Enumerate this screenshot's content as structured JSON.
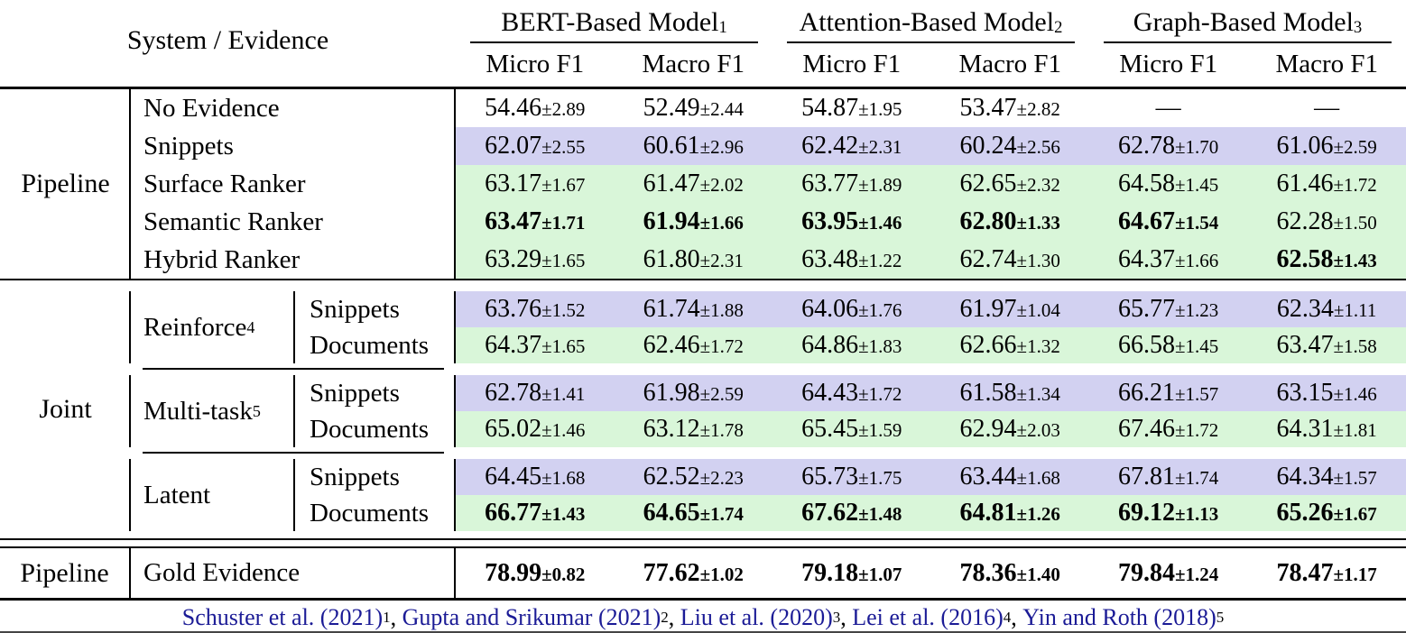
{
  "header": {
    "system_evidence": "System / Evidence",
    "model_groups": [
      {
        "label": "BERT-Based Model",
        "sup": "1"
      },
      {
        "label": "Attention-Based Model",
        "sup": "2"
      },
      {
        "label": "Graph-Based Model",
        "sup": "3"
      }
    ],
    "subcolumns": [
      "Micro F1",
      "Macro F1"
    ]
  },
  "colors": {
    "snippets_row_bg": "#d2d1f1",
    "documents_row_bg": "#d9f6d9",
    "citation_link": "#1b1b96"
  },
  "pipeline_block": {
    "label": "Pipeline",
    "rows": [
      {
        "evidence": "No Evidence",
        "bg": "none",
        "cells": [
          {
            "v": "54.46",
            "e": "±2.89",
            "bold": false
          },
          {
            "v": "52.49",
            "e": "±2.44",
            "bold": false
          },
          {
            "v": "54.87",
            "e": "±1.95",
            "bold": false
          },
          {
            "v": "53.47",
            "e": "±2.82",
            "bold": false
          },
          {
            "v": "—",
            "e": "",
            "bold": false
          },
          {
            "v": "—",
            "e": "",
            "bold": false
          }
        ]
      },
      {
        "evidence": "Snippets",
        "bg": "purple",
        "cells": [
          {
            "v": "62.07",
            "e": "±2.55",
            "bold": false
          },
          {
            "v": "60.61",
            "e": "±2.96",
            "bold": false
          },
          {
            "v": "62.42",
            "e": "±2.31",
            "bold": false
          },
          {
            "v": "60.24",
            "e": "±2.56",
            "bold": false
          },
          {
            "v": "62.78",
            "e": "±1.70",
            "bold": false
          },
          {
            "v": "61.06",
            "e": "±2.59",
            "bold": false
          }
        ]
      },
      {
        "evidence": "Surface Ranker",
        "bg": "green",
        "cells": [
          {
            "v": "63.17",
            "e": "±1.67",
            "bold": false
          },
          {
            "v": "61.47",
            "e": "±2.02",
            "bold": false
          },
          {
            "v": "63.77",
            "e": "±1.89",
            "bold": false
          },
          {
            "v": "62.65",
            "e": "±2.32",
            "bold": false
          },
          {
            "v": "64.58",
            "e": "±1.45",
            "bold": false
          },
          {
            "v": "61.46",
            "e": "±1.72",
            "bold": false
          }
        ]
      },
      {
        "evidence": "Semantic Ranker",
        "bg": "green",
        "cells": [
          {
            "v": "63.47",
            "e": "±1.71",
            "bold": true
          },
          {
            "v": "61.94",
            "e": "±1.66",
            "bold": true
          },
          {
            "v": "63.95",
            "e": "±1.46",
            "bold": true
          },
          {
            "v": "62.80",
            "e": "±1.33",
            "bold": true
          },
          {
            "v": "64.67",
            "e": "±1.54",
            "bold": true
          },
          {
            "v": "62.28",
            "e": "±1.50",
            "bold": false
          }
        ]
      },
      {
        "evidence": "Hybrid Ranker",
        "bg": "green",
        "cells": [
          {
            "v": "63.29",
            "e": "±1.65",
            "bold": false
          },
          {
            "v": "61.80",
            "e": "±2.31",
            "bold": false
          },
          {
            "v": "63.48",
            "e": "±1.22",
            "bold": false
          },
          {
            "v": "62.74",
            "e": "±1.30",
            "bold": false
          },
          {
            "v": "64.37",
            "e": "±1.66",
            "bold": false
          },
          {
            "v": "62.58",
            "e": "±1.43",
            "bold": true
          }
        ]
      }
    ]
  },
  "joint_block": {
    "label": "Joint",
    "groups": [
      {
        "system": "Reinforce",
        "sup": "4",
        "rows": [
          {
            "evidence": "Snippets",
            "bg": "purple",
            "cells": [
              {
                "v": "63.76",
                "e": "±1.52",
                "bold": false
              },
              {
                "v": "61.74",
                "e": "±1.88",
                "bold": false
              },
              {
                "v": "64.06",
                "e": "±1.76",
                "bold": false
              },
              {
                "v": "61.97",
                "e": "±1.04",
                "bold": false
              },
              {
                "v": "65.77",
                "e": "±1.23",
                "bold": false
              },
              {
                "v": "62.34",
                "e": "±1.11",
                "bold": false
              }
            ]
          },
          {
            "evidence": "Documents",
            "bg": "green",
            "cells": [
              {
                "v": "64.37",
                "e": "±1.65",
                "bold": false
              },
              {
                "v": "62.46",
                "e": "±1.72",
                "bold": false
              },
              {
                "v": "64.86",
                "e": "±1.83",
                "bold": false
              },
              {
                "v": "62.66",
                "e": "±1.32",
                "bold": false
              },
              {
                "v": "66.58",
                "e": "±1.45",
                "bold": false
              },
              {
                "v": "63.47",
                "e": "±1.58",
                "bold": false
              }
            ]
          }
        ]
      },
      {
        "system": "Multi-task",
        "sup": "5",
        "rows": [
          {
            "evidence": "Snippets",
            "bg": "purple",
            "cells": [
              {
                "v": "62.78",
                "e": "±1.41",
                "bold": false
              },
              {
                "v": "61.98",
                "e": "±2.59",
                "bold": false
              },
              {
                "v": "64.43",
                "e": "±1.72",
                "bold": false
              },
              {
                "v": "61.58",
                "e": "±1.34",
                "bold": false
              },
              {
                "v": "66.21",
                "e": "±1.57",
                "bold": false
              },
              {
                "v": "63.15",
                "e": "±1.46",
                "bold": false
              }
            ]
          },
          {
            "evidence": "Documents",
            "bg": "green",
            "cells": [
              {
                "v": "65.02",
                "e": "±1.46",
                "bold": false
              },
              {
                "v": "63.12",
                "e": "±1.78",
                "bold": false
              },
              {
                "v": "65.45",
                "e": "±1.59",
                "bold": false
              },
              {
                "v": "62.94",
                "e": "±2.03",
                "bold": false
              },
              {
                "v": "67.46",
                "e": "±1.72",
                "bold": false
              },
              {
                "v": "64.31",
                "e": "±1.81",
                "bold": false
              }
            ]
          }
        ]
      },
      {
        "system": "Latent",
        "sup": "",
        "rows": [
          {
            "evidence": "Snippets",
            "bg": "purple",
            "cells": [
              {
                "v": "64.45",
                "e": "±1.68",
                "bold": false
              },
              {
                "v": "62.52",
                "e": "±2.23",
                "bold": false
              },
              {
                "v": "65.73",
                "e": "±1.75",
                "bold": false
              },
              {
                "v": "63.44",
                "e": "±1.68",
                "bold": false
              },
              {
                "v": "67.81",
                "e": "±1.74",
                "bold": false
              },
              {
                "v": "64.34",
                "e": "±1.57",
                "bold": false
              }
            ]
          },
          {
            "evidence": "Documents",
            "bg": "green",
            "cells": [
              {
                "v": "66.77",
                "e": "±1.43",
                "bold": true
              },
              {
                "v": "64.65",
                "e": "±1.74",
                "bold": true
              },
              {
                "v": "67.62",
                "e": "±1.48",
                "bold": true
              },
              {
                "v": "64.81",
                "e": "±1.26",
                "bold": true
              },
              {
                "v": "69.12",
                "e": "±1.13",
                "bold": true
              },
              {
                "v": "65.26",
                "e": "±1.67",
                "bold": true
              }
            ]
          }
        ]
      }
    ]
  },
  "gold_row": {
    "system": "Pipeline",
    "evidence": "Gold Evidence",
    "cells": [
      {
        "v": "78.99",
        "e": "±0.82",
        "bold": true
      },
      {
        "v": "77.62",
        "e": "±1.02",
        "bold": true
      },
      {
        "v": "79.18",
        "e": "±1.07",
        "bold": true
      },
      {
        "v": "78.36",
        "e": "±1.40",
        "bold": true
      },
      {
        "v": "79.84",
        "e": "±1.24",
        "bold": true
      },
      {
        "v": "78.47",
        "e": "±1.17",
        "bold": true
      }
    ]
  },
  "footnotes": [
    {
      "text": "Schuster et al. (2021)",
      "sup": "1"
    },
    {
      "text": "Gupta and Srikumar (2021)",
      "sup": "2"
    },
    {
      "text": "Liu et al. (2020)",
      "sup": "3"
    },
    {
      "text": "Lei et al. (2016)",
      "sup": "4"
    },
    {
      "text": "Yin and Roth (2018)",
      "sup": "5"
    }
  ]
}
